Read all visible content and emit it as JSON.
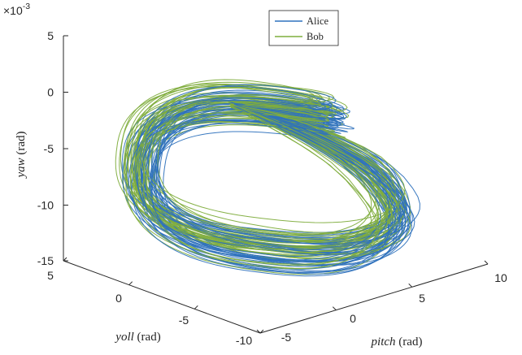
{
  "chart_data": {
    "type": "line",
    "subtype": "3d-trajectory",
    "title": "",
    "axes": {
      "x": {
        "label_var": "pitch",
        "label_unit": "(rad)",
        "ticks": [
          "-5",
          "0",
          "5",
          "10"
        ],
        "range": [
          -5,
          10
        ]
      },
      "y": {
        "label_var": "yoll",
        "label_unit": "(rad)",
        "ticks": [
          "5",
          "0",
          "-5",
          "-10"
        ],
        "range": [
          -10,
          5
        ]
      },
      "z": {
        "label_var": "yaw",
        "label_unit": "(rad)",
        "ticks": [
          "5",
          "0",
          "-5",
          "-10",
          "-15"
        ],
        "range": [
          -15,
          5
        ],
        "multiplier_base": "×10",
        "multiplier_exp": "-3"
      }
    },
    "grid": false,
    "legend": {
      "position": "top-center"
    },
    "series": [
      {
        "name": "Alice",
        "color": "#2f72bd"
      },
      {
        "name": "Bob",
        "color": "#7fad3d"
      }
    ]
  }
}
